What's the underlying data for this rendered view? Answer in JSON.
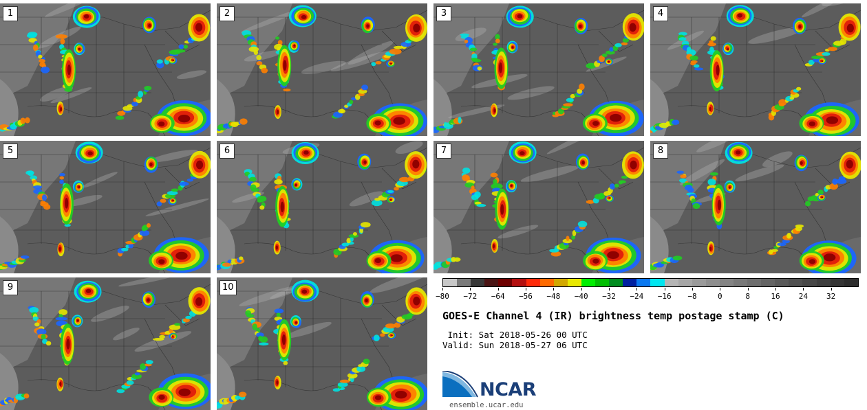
{
  "panels": [
    {
      "label": "1"
    },
    {
      "label": "2"
    },
    {
      "label": "3"
    },
    {
      "label": "4"
    },
    {
      "label": "5"
    },
    {
      "label": "6"
    },
    {
      "label": "7"
    },
    {
      "label": "8"
    },
    {
      "label": "9"
    },
    {
      "label": "10"
    }
  ],
  "title": "GOES-E Channel 4 (IR) brightness temp postage stamp (C)",
  "init_text": " Init: Sat 2018-05-26 00 UTC",
  "valid_text": "Valid: Sun 2018-05-27 06 UTC",
  "colorbar": {
    "min": -80,
    "max": 40,
    "step": 4,
    "tick_labels": [
      "−80",
      "−72",
      "−64",
      "−56",
      "−48",
      "−40",
      "−32",
      "−24",
      "−16",
      "−8",
      "0",
      "8",
      "16",
      "24",
      "32"
    ],
    "colors": [
      "#c8c8c8",
      "#7a7a7a",
      "#383838",
      "#4a1414",
      "#6e0000",
      "#b40f0f",
      "#ff2a0a",
      "#ff6a00",
      "#d2a800",
      "#e8e800",
      "#00ee00",
      "#00be00",
      "#008c1e",
      "#0020a0",
      "#0a78f0",
      "#00e6f0",
      "#b4b4b4",
      "#a6a6a6",
      "#9a9a9a",
      "#8e8e8e",
      "#838383",
      "#787878",
      "#6e6e6e",
      "#646464",
      "#5a5a5a",
      "#505050",
      "#474747",
      "#3e3e3e",
      "#353535",
      "#2d2d2d"
    ]
  },
  "logo": {
    "name": "NCAR",
    "url": "ensemble.ucar.edu"
  },
  "colors": {
    "cold_core": "#8b0000",
    "hot_red": "#e01b0b",
    "orange": "#ff7f00",
    "yellow": "#e6e600",
    "green": "#22cc22",
    "blue": "#1a66ff",
    "cyan": "#00e0e0",
    "land": "#5c5c5c"
  }
}
